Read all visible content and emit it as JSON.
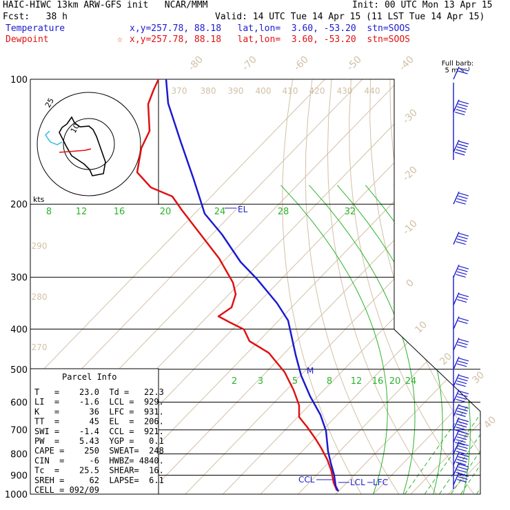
{
  "header": {
    "line1_left": "HAIC-HIWC 13km ARW-GFS init   NCAR/MMM",
    "line1_right": "Init: 00 UTC Mon 13 Apr 15",
    "line2_left": "Fcst:   38 h",
    "line2_right": "Valid: 14 UTC Tue 14 Apr 15 (11 LST Tue 14 Apr 15)",
    "temp_label": "Temperature",
    "temp_info": "x,y=257.78, 88.18   lat,lon=  3.60, -53.20  stn=SOOS",
    "dew_label": "Dewpoint",
    "dew_star": "☆",
    "dew_info": "x,y=257.78, 88.18   lat,lon=  3.60, -53.20  stn=SOOS"
  },
  "colors": {
    "temperature": "#1a1ad0",
    "dewpoint": "#e01010",
    "isotherm": "#d2bfa6",
    "mixing_ratio": "#2bb32b",
    "isobar": "#000000",
    "wind": "#1a1ad0"
  },
  "chart_data": {
    "type": "skew-t",
    "pressure_axis_hpa": {
      "ticks": [
        "100",
        "200",
        "300",
        "400",
        "500",
        "600",
        "700",
        "800",
        "900",
        "1000"
      ],
      "isobars": [
        100,
        200,
        300,
        400,
        500,
        600,
        700,
        800,
        900,
        1000
      ]
    },
    "skewed_isotherm_labels_degC": [
      "-80",
      "-70",
      "-60",
      "-50",
      "-40",
      "-30",
      "-20",
      "-10",
      "0",
      "10",
      "20",
      "30",
      "40"
    ],
    "theta_labels_K": [
      "370",
      "380",
      "390",
      "400",
      "410",
      "420",
      "430",
      "440",
      "290",
      "280",
      "270"
    ],
    "mixing_ratio_labels_upper": [
      "8",
      "12",
      "16",
      "20",
      "24",
      "28",
      "32"
    ],
    "mixing_ratio_labels_lower": [
      "2",
      "3",
      "4",
      "5",
      "6",
      "8",
      "12",
      "16",
      "20",
      "24"
    ],
    "temperature_profile": [
      {
        "p": 100,
        "t": -87
      },
      {
        "p": 150,
        "t": -69
      },
      {
        "p": 200,
        "t": -54
      },
      {
        "p": 250,
        "t": -42
      },
      {
        "p": 300,
        "t": -32
      },
      {
        "p": 400,
        "t": -16
      },
      {
        "p": 500,
        "t": -5
      },
      {
        "p": 600,
        "t": 4
      },
      {
        "p": 700,
        "t": 10
      },
      {
        "p": 800,
        "t": 16
      },
      {
        "p": 850,
        "t": 18
      },
      {
        "p": 900,
        "t": 21
      },
      {
        "p": 950,
        "t": 22
      },
      {
        "p": 985,
        "t": 23
      }
    ],
    "dewpoint_profile": [
      {
        "p": 100,
        "t": -90
      },
      {
        "p": 130,
        "t": -90
      },
      {
        "p": 150,
        "t": -85
      },
      {
        "p": 180,
        "t": -87
      },
      {
        "p": 200,
        "t": -70
      },
      {
        "p": 250,
        "t": -60
      },
      {
        "p": 300,
        "t": -50
      },
      {
        "p": 330,
        "t": -45
      },
      {
        "p": 370,
        "t": -52
      },
      {
        "p": 400,
        "t": -35
      },
      {
        "p": 450,
        "t": -28
      },
      {
        "p": 500,
        "t": -17
      },
      {
        "p": 550,
        "t": -10
      },
      {
        "p": 600,
        "t": -5
      },
      {
        "p": 650,
        "t": -7
      },
      {
        "p": 700,
        "t": 0
      },
      {
        "p": 800,
        "t": 10
      },
      {
        "p": 850,
        "t": 15
      },
      {
        "p": 900,
        "t": 19
      },
      {
        "p": 950,
        "t": 21
      },
      {
        "p": 985,
        "t": 22.3
      }
    ],
    "level_markers": [
      {
        "label": "EL",
        "p": 206
      },
      {
        "label": "M",
        "p": 500
      },
      {
        "label": "CCL",
        "p": 921
      },
      {
        "label": "LCL",
        "p": 929
      },
      {
        "label": "LFC",
        "p": 931
      }
    ],
    "hodograph": {
      "kts_label": "kts",
      "ring_labels": [
        "10",
        "25"
      ],
      "line_color": "#000000",
      "shear_color": "#e01010",
      "low_color": "#40c0e0"
    },
    "wind_barbs_label": "Full barb:",
    "wind_barbs_units": "5 m s⁻¹",
    "wind_profile": [
      {
        "p": 100,
        "spd": 3,
        "dir": 90
      },
      {
        "p": 120,
        "spd": 10,
        "dir": 90
      },
      {
        "p": 150,
        "spd": 10,
        "dir": 90
      },
      {
        "p": 200,
        "spd": 8,
        "dir": 80
      },
      {
        "p": 250,
        "spd": 8,
        "dir": 80
      },
      {
        "p": 300,
        "spd": 7,
        "dir": 80
      },
      {
        "p": 350,
        "spd": 5,
        "dir": 90
      },
      {
        "p": 400,
        "spd": 4,
        "dir": 100
      },
      {
        "p": 450,
        "spd": 5,
        "dir": 100
      },
      {
        "p": 500,
        "spd": 6,
        "dir": 100
      },
      {
        "p": 550,
        "spd": 7,
        "dir": 95
      },
      {
        "p": 600,
        "spd": 8,
        "dir": 90
      },
      {
        "p": 650,
        "spd": 8,
        "dir": 90
      },
      {
        "p": 700,
        "spd": 9,
        "dir": 90
      },
      {
        "p": 750,
        "spd": 9,
        "dir": 90
      },
      {
        "p": 800,
        "spd": 8,
        "dir": 95
      },
      {
        "p": 850,
        "spd": 7,
        "dir": 100
      },
      {
        "p": 900,
        "spd": 7,
        "dir": 100
      },
      {
        "p": 950,
        "spd": 5,
        "dir": 110
      }
    ]
  },
  "parcel_info": {
    "title": "Parcel Info",
    "rows": [
      "T   =    23.0  Td =   22.3",
      "LI  =    -1.6  LCL =  929.",
      "K   =      36  LFC =  931.",
      "TT  =      45  EL  =  206.",
      "SWI =    -1.4  CCL =  921.",
      "PW  =    5.43  YGP =   0.1",
      "CAPE =    250  SWEAT=  248",
      "CIN  =     -6  HWBZ= 4840.",
      "Tc  =    25.5  SHEAR=  16.",
      "SREH =     62  LAPSE=  6.1",
      "CELL = 092/09"
    ]
  }
}
